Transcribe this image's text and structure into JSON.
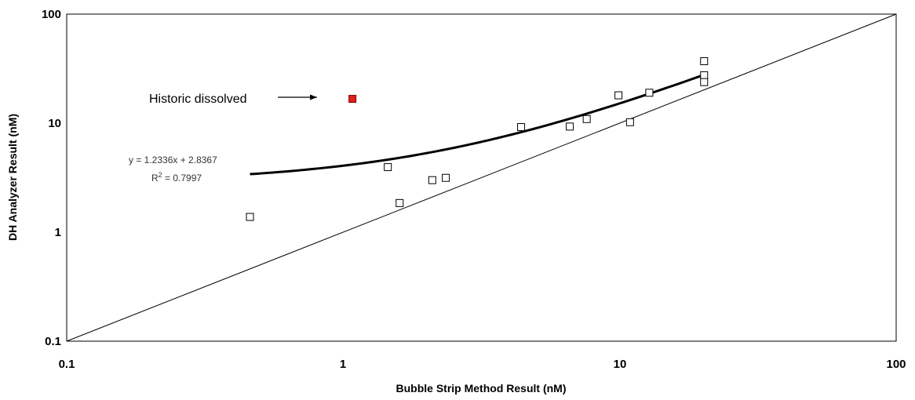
{
  "chart_data": {
    "type": "scatter",
    "title": "",
    "xlabel": "Bubble Strip Method Result (nM)",
    "ylabel": "DH Analyzer Result (nM)",
    "xscale": "log",
    "yscale": "log",
    "xlim": [
      0.1,
      100
    ],
    "ylim": [
      0.1,
      100
    ],
    "x_ticks": [
      "0.1",
      "1",
      "10",
      "100"
    ],
    "y_ticks": [
      "0.1",
      "1",
      "10",
      "100"
    ],
    "grid": false,
    "legend": "none",
    "series": [
      {
        "marker": "open-square",
        "color": "#000000",
        "points": [
          {
            "x": 0.46,
            "y": 1.38
          },
          {
            "x": 1.45,
            "y": 3.95
          },
          {
            "x": 1.6,
            "y": 1.85
          },
          {
            "x": 2.1,
            "y": 3.0
          },
          {
            "x": 2.35,
            "y": 3.15
          },
          {
            "x": 4.4,
            "y": 9.2
          },
          {
            "x": 6.6,
            "y": 9.3
          },
          {
            "x": 7.6,
            "y": 10.9
          },
          {
            "x": 9.9,
            "y": 18.0
          },
          {
            "x": 10.9,
            "y": 10.2
          },
          {
            "x": 12.8,
            "y": 19.0
          },
          {
            "x": 20.2,
            "y": 37.0
          },
          {
            "x": 20.2,
            "y": 27.5
          },
          {
            "x": 20.2,
            "y": 23.8
          }
        ]
      },
      {
        "marker": "filled-square",
        "color": "#e02020",
        "points": [
          {
            "x": 1.08,
            "y": 16.7
          }
        ]
      }
    ],
    "trendline": {
      "slope": 1.2336,
      "intercept": 2.8367,
      "x_range": [
        0.46,
        20.2
      ],
      "color": "#000000"
    },
    "reference_line": {
      "points": [
        [
          0.1,
          0.1
        ],
        [
          100,
          100
        ]
      ],
      "color": "#000000"
    },
    "annotations": {
      "historic_label": "Historic dissolved",
      "equation": "y = 1.2336x + 2.8367",
      "r2_prefix": "R",
      "r2_sup": "2",
      "r2_value": " = 0.7997"
    }
  }
}
